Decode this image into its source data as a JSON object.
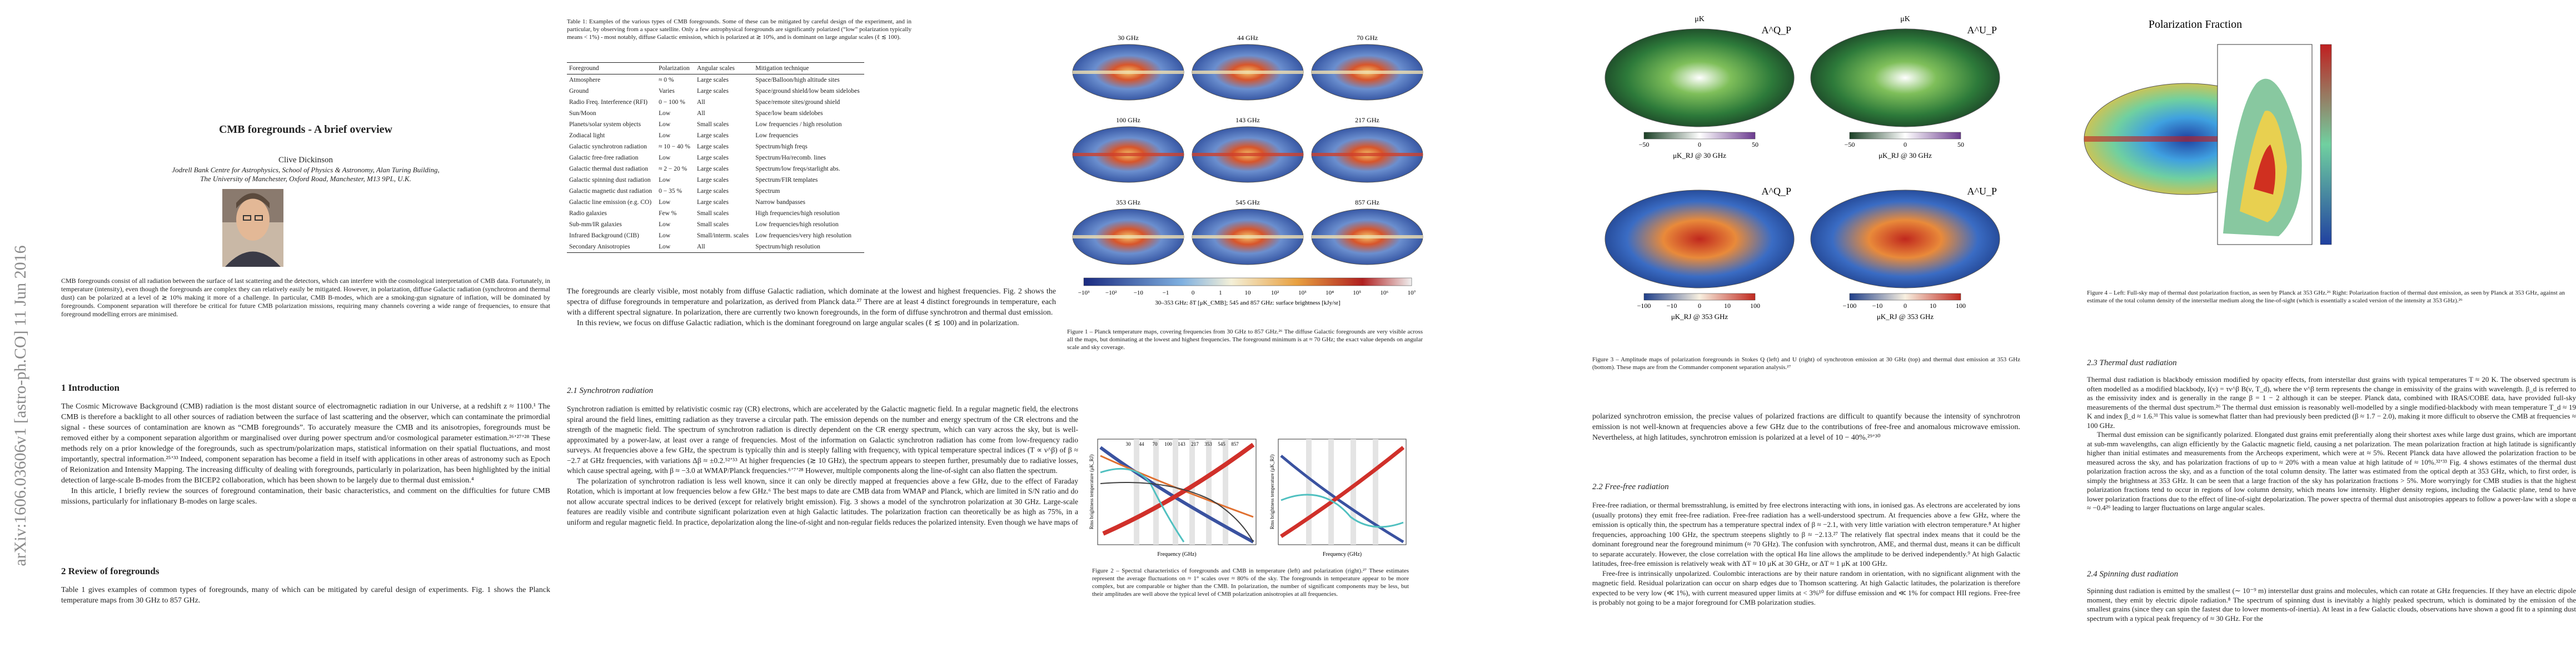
{
  "arxiv_id": "arXiv:1606.03606v1 [astro-ph.CO] 11 Jun 2016",
  "page1": {
    "title": "CMB foregrounds - A brief overview",
    "author": "Clive Dickinson",
    "affiliation": [
      "Jodrell Bank Centre for Astrophysics, School of Physics & Astronomy, Alan Turing Building,",
      "The University of Manchester, Oxford Road, Manchester, M13 9PL, U.K."
    ],
    "abstract": "CMB foregrounds consist of all radiation between the surface of last scattering and the detectors, which can interfere with the cosmological interpretation of CMB data. Fortunately, in temperature (intensity), even though the foregrounds are complex they can relatively easily be mitigated. However, in polarization, diffuse Galactic radiation (synchrotron and thermal dust) can be polarized at a level of ≳ 10% making it more of a challenge. In particular, CMB B-modes, which are a smoking-gun signature of inflation, will be dominated by foregrounds. Component separation will therefore be critical for future CMB polarization missions, requiring many channels covering a wide range of frequencies, to ensure that foreground modelling errors are minimised.",
    "intro": {
      "heading": "1   Introduction",
      "paragraphs": [
        "The Cosmic Microwave Background (CMB) radiation is the most distant source of electromagnetic radiation in our Universe, at a redshift z ≈ 1100.¹ The CMB is therefore a backlight to all other sources of radiation between the surface of last scattering and the observer, which can contaminate the primordial signal - these sources of contamination are known as “CMB foregrounds”. To accurately measure the CMB and its anisotropies, foregrounds must be removed either by a component separation algorithm or marginalised over during power spectrum and/or cosmological parameter estimation.²⁶ʼ²⁷ʼ²⁸ These methods rely on a prior knowledge of the foregrounds, such as spectrum/polarization maps, statistical information on their spatial fluctuations, and most importantly, spectral information.²⁵ʼ³³ Indeed, component separation has become a field in itself with applications in other areas of astronomy such as Epoch of Reionization and Intensity Mapping. The increasing difficulty of dealing with foregrounds, particularly in polarization, has been highlighted by the initial detection of large-scale B-modes from the BICEP2 collaboration, which has been shown to be largely due to thermal dust emission.⁴",
        "In this article, I briefly review the sources of foreground contamination, their basic characteristics, and comment on the difficulties for future CMB missions, particularly for inflationary B-modes on large scales."
      ]
    },
    "review": {
      "heading": "2   Review of foregrounds",
      "paragraphs": [
        "Table 1 gives examples of common types of foregrounds, many of which can be mitigated by careful design of experiments. Fig. 1 shows the Planck temperature maps from 30 GHz to 857 GHz."
      ]
    }
  },
  "page2": {
    "table": {
      "caption": "Table 1: Examples of the various types of CMB foregrounds. Some of these can be mitigated by careful design of the experiment, and in particular, by observing from a space satellite. Only a few astrophysical foregrounds are significantly polarized (“low” polarization typically means < 1%) - most notably, diffuse Galactic emission, which is polarized at ≳ 10%, and is dominant on large angular scales (ℓ ≲ 100).",
      "header": [
        "Foreground",
        "Polarization",
        "Angular scales",
        "Mitigation technique"
      ],
      "rows": [
        [
          "Atmosphere",
          "≈ 0 %",
          "Large scales",
          "Space/Balloon/high altitude sites"
        ],
        [
          "Ground",
          "Varies",
          "Large scales",
          "Space/ground shield/low beam sidelobes"
        ],
        [
          "Radio Freq. Interference (RFI)",
          "0 − 100 %",
          "All",
          "Space/remote sites/ground shield"
        ],
        [
          "Sun/Moon",
          "Low",
          "All",
          "Space/low beam sidelobes"
        ],
        [
          "Planets/solar system objects",
          "Low",
          "Small scales",
          "Low frequencies / high resolution"
        ],
        [
          "Zodiacal light",
          "Low",
          "Large scales",
          "Low frequencies"
        ],
        [
          "Galactic synchrotron radiation",
          "≈ 10 − 40 %",
          "Large scales",
          "Spectrum/high freqs"
        ],
        [
          "Galactic free-free radiation",
          "Low",
          "Large scales",
          "Spectrum/Hα/recomb. lines"
        ],
        [
          "Galactic thermal dust radiation",
          "≈ 2 − 20 %",
          "Large scales",
          "Spectrum/low freqs/starlight abs."
        ],
        [
          "Galactic spinning dust radiation",
          "Low",
          "Large scales",
          "Spectrum/FIR templates"
        ],
        [
          "Galactic magnetic dust radiation",
          "0 − 35 %",
          "Large scales",
          "Spectrum"
        ],
        [
          "Galactic line emission (e.g. CO)",
          "Low",
          "Large scales",
          "Narrow bandpasses"
        ],
        [
          "Radio galaxies",
          "Few %",
          "Small scales",
          "High frequencies/high resolution"
        ],
        [
          "Sub-mm/IR galaxies",
          "Low",
          "Small scales",
          "Low frequencies/high resolution"
        ],
        [
          "Infrared Background (CIB)",
          "Low",
          "Small/interm. scales",
          "Low frequencies/very high resolution"
        ],
        [
          "Secondary Anisotropies",
          "Low",
          "All",
          "Spectrum/high resolution"
        ]
      ]
    },
    "paragraphs": [
      "The foregrounds are clearly visible, most notably from diffuse Galactic radiation, which dominate at the lowest and highest frequencies. Fig. 2 shows the spectra of diffuse foregrounds in temperature and polarization, as derived from Planck data.²⁷ There are at least 4 distinct foregrounds in temperature, each with a different spectral signature. In polarization, there are currently two known foregrounds, in the form of diffuse synchrotron and thermal dust emission.",
      "In this review, we focus on diffuse Galactic radiation, which is the dominant foreground on large angular scales (ℓ ≲ 100) and in polarization."
    ],
    "figure1": {
      "labels": [
        "30 GHz",
        "44 GHz",
        "70 GHz",
        "100 GHz",
        "143 GHz",
        "217 GHz",
        "353 GHz",
        "545 GHz",
        "857 GHz"
      ],
      "colorbar_ticks": [
        "−10³",
        "−10²",
        "−10",
        "−1",
        "0",
        "1",
        "10",
        "10²",
        "10³",
        "10⁴",
        "10⁵",
        "10⁶",
        "10⁷"
      ],
      "colorbar_label": "30–353 GHz: δT [μK_CMB]; 545 and 857 GHz: surface brightness [kJy/sr]",
      "caption": "Figure 1 – Planck temperature maps, covering frequencies from 30 GHz to 857 GHz.²⁶ The diffuse Galactic foregrounds are very visible across all the maps, but dominating at the lowest and highest frequencies. The foreground minimum is at ≈ 70 GHz; the exact value depends on angular scale and sky coverage."
    },
    "synchrotron": {
      "heading": "2.1   Synchrotron radiation",
      "paragraphs": [
        "Synchrotron radiation is emitted by relativistic cosmic ray (CR) electrons, which are accelerated by the Galactic magnetic field. In a regular magnetic field, the electrons spiral around the field lines, emitting radiation as they traverse a circular path. The emission depends on the number and energy spectrum of the CR electrons and the strength of the magnetic field. The spectrum of synchrotron radiation is directly dependent on the CR energy spectrum, which can vary across the sky, but is well-approximated by a power-law, at least over a range of frequencies. Most of the information on Galactic synchrotron radiation has come from low-frequency radio surveys. At frequencies above a few GHz, the spectrum is typically thin and is steeply falling with frequency, with typical temperature spectral indices (T ∝ ν^β) of β ≈ −2.7 at GHz frequencies, with variations Δβ ≈ ±0.2.⁵²ʼ⁵³ At higher frequencies (≳ 10 GHz), the spectrum appears to steepen further, presumably due to radiative losses, which cause spectral ageing, with β ≈ −3.0 at WMAP/Planck frequencies.⁶ʼ⁷ʼ²⁸ However, multiple components along the line-of-sight can also flatten the spectrum.",
        "The polarization of synchrotron radiation is less well known, since it can only be directly mapped at frequencies above a few GHz, due to the effect of Faraday Rotation, which is important at low frequencies below a few GHz.⁶ The best maps to date are CMB data from WMAP and Planck, which are limited in S/N ratio and do not allow accurate spectral indices to be derived (except for relatively bright emission). Fig. 3 shows a model of the synchrotron polarization at 30 GHz. Large-scale features are readily visible and contribute significant polarization even at high Galactic latitudes. The polarization fraction can theoretically be as high as 75%, in a uniform and regular magnetic field. In practice, depolarization along the line-of-sight and non-regular fields reduces the polarized intensity. Even though we have maps of"
      ]
    },
    "figure2": {
      "frequency_labels": [
        "30",
        "44",
        "70",
        "100",
        "143",
        "217",
        "353",
        "545",
        "857"
      ],
      "panels": [
        {
          "xlabel": "Frequency (GHz)",
          "ylabel": "Rms brightness temperature (μK_RJ)"
        },
        {
          "xlabel": "Frequency (GHz)",
          "ylabel": "Rms brightness temperature (μK_RJ)"
        }
      ],
      "caption": "Figure 2 – Spectral characteristics of foregrounds and CMB in temperature (left) and polarization (right).²⁷ These estimates represent the average fluctuations on ≈ 1° scales over ≈ 80% of the sky. The foregrounds in temperature appear to be more complex, but are comparable or higher than the CMB. In polarization, the number of significant components may be less, but their amplitudes are well above the typical level of CMB polarization anisotropies at all frequencies."
    }
  },
  "page3": {
    "figure3": {
      "units": [
        "μK",
        "μK"
      ],
      "panel_labels": [
        "A^Q_P",
        "A^U_P",
        "A^Q_P",
        "A^U_P"
      ],
      "colorbars": [
        {
          "ticks": [
            "−50",
            "0",
            "50"
          ],
          "label": "μK_RJ @ 30 GHz"
        },
        {
          "ticks": [
            "−50",
            "0",
            "50"
          ],
          "label": "μK_RJ @ 30 GHz"
        },
        {
          "ticks": [
            "−100",
            "−10",
            "0",
            "10",
            "100"
          ],
          "label": "μK_RJ @ 353 GHz"
        },
        {
          "ticks": [
            "−100",
            "−10",
            "0",
            "10",
            "100"
          ],
          "label": "μK_RJ @ 353 GHz"
        }
      ],
      "caption": "Figure 3 – Amplitude maps of polarization foregrounds in Stokes Q (left) and U (right) of synchrotron emission at 30 GHz (top) and thermal dust emission at 353 GHz (bottom). These maps are from the Commander component separation analysis.²⁷"
    },
    "paragraphs": [
      "polarized synchrotron emission, the precise values of polarized fractions are difficult to quantify because the intensity of synchrotron emission is not well-known at frequencies above a few GHz due to the contributions of free-free and anomalous microwave emission. Nevertheless, at high latitudes, synchrotron emission is polarized at a level of 10 − 40%.²⁹ʼ³⁰"
    ],
    "free_free": {
      "heading": "2.2   Free-free radiation",
      "paragraphs": [
        "Free-free radiation, or thermal bremsstrahlung, is emitted by free electrons interacting with ions, in ionised gas. As electrons are accelerated by ions (usually protons) they emit free-free radiation. Free-free radiation has a well-understood spectrum. At frequencies above a few GHz, where the emission is optically thin, the spectrum has a temperature spectral index of β ≈ −2.1, with very little variation with electron temperature.⁸ At higher frequencies, approaching 100 GHz, the spectrum steepens slightly to β ≈ −2.13.²⁷ The relatively flat spectral index means that it could be the dominant foreground near the foreground minimum (≈ 70 GHz). The confusion with synchrotron, AME, and thermal dust, means it can be difficult to separate accurately. However, the close correlation with the optical Hα line allows the amplitude to be derived independently.⁹ At high Galactic latitudes, free-free emission is relatively weak with ΔT ≈ 10 μK at 30 GHz, or ΔT ≈ 1 μK at 100 GHz.",
        "Free-free is intrinsically unpolarized. Coulombic interactions are by their nature random in orientation, with no significant alignment with the magnetic field. Residual polarization can occur on sharp edges due to Thomson scattering. At high Galactic latitudes, the polarization is therefore expected to be very low (≪ 1%), with current measured upper limits at < 3%¹⁰ for diffuse emission and ≪ 1% for compact HII regions. Free-free is probably not going to be a major foreground for CMB polarization studies."
      ]
    }
  },
  "page4": {
    "figure4": {
      "title": "Polarization Fraction",
      "caption": "Figure 4 – Left: Full-sky map of thermal dust polarization fraction, as seen by Planck at 353 GHz.²⁶ Right: Polarization fraction of thermal dust emission, as seen by Planck at 353 GHz, against an estimate of the total column density of the interstellar medium along the line-of-sight (which is essentially a scaled version of the intensity at 353 GHz).²⁶"
    },
    "thermal_dust": {
      "heading": "2.3   Thermal dust radiation",
      "paragraphs": [
        "Thermal dust radiation is blackbody emission modified by opacity effects, from interstellar dust grains with typical temperatures T ≈ 20 K. The observed spectrum is often modelled as a modified blackbody, I(ν) = τν^β B(ν, T_d), where the ν^β term represents the change in emissivity of the grains with wavelength. β_d is referred to as the emissivity index and is generally in the range β = 1 − 2 although it can be steeper. Planck data, combined with IRAS/COBE data, have provided full-sky measurements of the thermal dust spectrum.²⁶ The thermal dust emission is reasonably well-modelled by a single modified-blackbody with mean temperature T_d ≈ 19 K and index β_d ≈ 1.6.³¹ This value is somewhat flatter than had previously been predicted (β ≈ 1.7 − 2.0), making it more difficult to observe the CMB at frequencies ≈ 100 GHz.",
        "Thermal dust emission can be significantly polarized. Elongated dust grains emit preferentially along their shortest axes while large dust grains, which are important at sub-mm wavelengths, can align efficiently by the Galactic magnetic field, causing a net polarization. The mean polarization fraction at high latitude is significantly higher than initial estimates and measurements from the Archeops experiment, which were at ≈ 5%. Recent Planck data have allowed the polarization fraction to be measured across the sky, and has polarization fractions of up to ≈ 20% with a mean value at high latitude of ≈ 10%.³²ʼ³³ Fig. 4 shows estimates of the thermal dust polarization fraction across the sky, and as a function of the total column density. The latter was estimated from the optical depth at 353 GHz, which, to first order, is simply the brightness at 353 GHz. It can be seen that a large fraction of the sky has polarization fractions > 5%. More worryingly for CMB studies is that the highest polarization fractions tend to occur in regions of low column density, which means low intensity. Higher density regions, including the Galactic plane, tend to have lower polarization fractions due to the effect of line-of-sight depolarization. The power spectra of thermal dust anisotropies appears to follow a power-law with a slope α ≈ −0.4²⁶ leading to larger fluctuations on large angular scales."
      ]
    },
    "spinning_dust": {
      "heading": "2.4   Spinning dust radiation",
      "paragraphs": [
        "Spinning dust radiation is emitted by the smallest (∼ 10⁻⁹ m) interstellar dust grains and molecules, which can rotate at GHz frequencies. If they have an electric dipole moment, they emit by electric dipole radiation.⁸ The spectrum of spinning dust is inevitably a highly peaked spectrum, which is dominated by the emission of the smallest grains (since they can spin the fastest due to lower moments-of-inertia). At least in a few Galactic clouds, observations have shown a good fit to a spinning dust spectrum with a typical peak frequency of ≈ 30 GHz. For the"
      ]
    }
  }
}
